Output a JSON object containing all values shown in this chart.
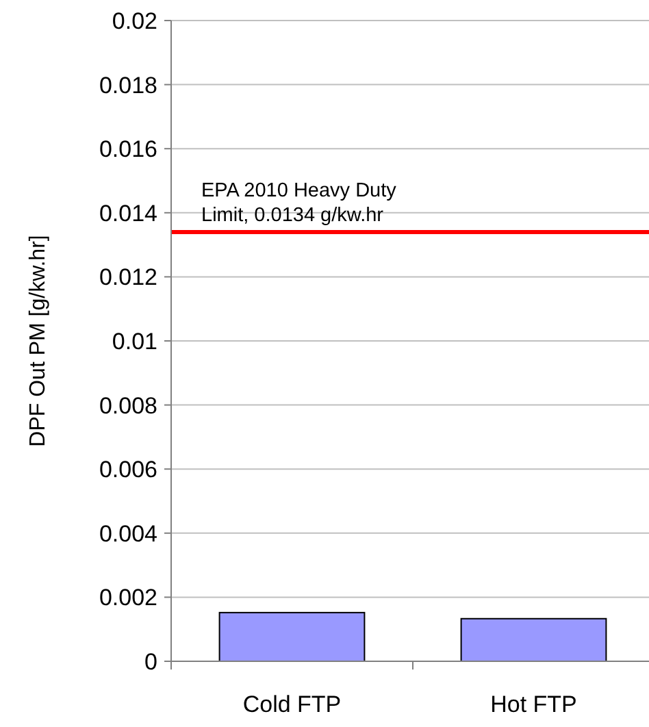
{
  "chart_data": {
    "type": "bar",
    "ylabel": "DPF Out PM [g/kw.hr]",
    "categories": [
      "Cold FTP",
      "Hot FTP"
    ],
    "values": [
      0.00152,
      0.00133
    ],
    "color": "#9999ff",
    "ylim": [
      0,
      0.02
    ],
    "yticks": [
      0,
      0.002,
      0.004,
      0.006,
      0.008,
      0.01,
      0.012,
      0.014,
      0.016,
      0.018,
      0.02
    ],
    "grid": "y",
    "ref_lines": [
      {
        "axis": "y",
        "value": 0.0134,
        "label": "EPA 2010 Heavy Duty Limit, 0.0134 g/kw.hr",
        "color": "#ff0000"
      }
    ]
  }
}
